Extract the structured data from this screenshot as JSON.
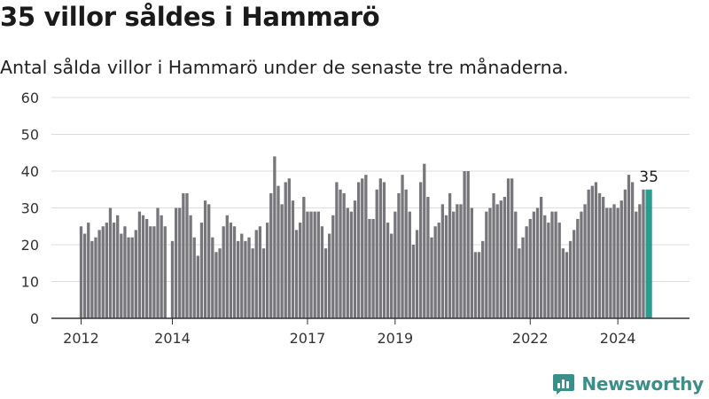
{
  "title": "35 villor såldes i Hammarö",
  "subtitle": "Antal sålda villor i Hammarö under de senaste tre månaderna.",
  "brand": {
    "name": "Newsworthy",
    "color": "#3a8f89"
  },
  "chart_data": {
    "type": "bar",
    "ylim": [
      0,
      60
    ],
    "yticks": [
      0,
      10,
      20,
      30,
      40,
      50,
      60
    ],
    "xticks": [
      {
        "label": "2012",
        "index": 0
      },
      {
        "label": "2014",
        "index": 25
      },
      {
        "label": "2017",
        "index": 62
      },
      {
        "label": "2019",
        "index": 86
      },
      {
        "label": "2022",
        "index": 123
      },
      {
        "label": "2024",
        "index": 147
      }
    ],
    "grid": true,
    "bar_color": "#76767b",
    "highlight_color": "#2a9d8f",
    "highlight_label": "35",
    "values": [
      25,
      23,
      26,
      21,
      22,
      24,
      25,
      26,
      30,
      26,
      28,
      23,
      25,
      22,
      22,
      24,
      29,
      28,
      27,
      25,
      25,
      30,
      28,
      25,
      0,
      21,
      30,
      30,
      34,
      34,
      28,
      22,
      17,
      26,
      32,
      31,
      22,
      18,
      19,
      25,
      28,
      26,
      25,
      21,
      23,
      21,
      22,
      19,
      24,
      25,
      19,
      26,
      34,
      44,
      36,
      31,
      37,
      38,
      32,
      24,
      26,
      33,
      29,
      29,
      29,
      29,
      25,
      19,
      23,
      28,
      37,
      35,
      34,
      30,
      29,
      32,
      37,
      38,
      39,
      27,
      27,
      35,
      38,
      37,
      26,
      23,
      29,
      34,
      39,
      35,
      29,
      20,
      24,
      37,
      42,
      33,
      22,
      25,
      26,
      31,
      28,
      34,
      29,
      31,
      31,
      40,
      40,
      30,
      18,
      18,
      21,
      29,
      30,
      34,
      31,
      32,
      33,
      38,
      38,
      29,
      19,
      22,
      25,
      27,
      29,
      30,
      33,
      28,
      26,
      29,
      29,
      26,
      19,
      18,
      21,
      24,
      27,
      29,
      31,
      35,
      36,
      37,
      34,
      33,
      30,
      30,
      31,
      30,
      32,
      35,
      39,
      37,
      29,
      31,
      35,
      35
    ]
  }
}
